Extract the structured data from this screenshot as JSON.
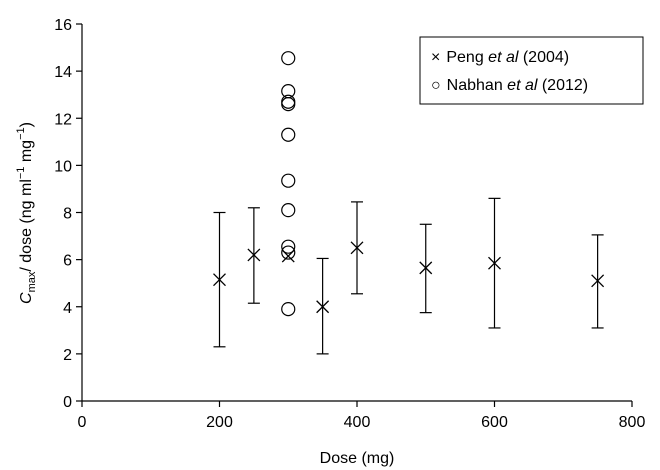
{
  "chart_data": {
    "type": "scatter",
    "xlabel": "Dose (mg)",
    "ylabel": {
      "main": "C",
      "main_subscript": "max",
      "rest": "/ dose (ng ml",
      "sup1": "−1",
      "mid": " mg",
      "sup2": "−1",
      "end": ")"
    },
    "xlim": [
      0,
      800
    ],
    "ylim": [
      0,
      16
    ],
    "xticks": [
      0,
      200,
      400,
      600,
      800
    ],
    "yticks": [
      0,
      2,
      4,
      6,
      8,
      10,
      12,
      14,
      16
    ],
    "grid": false,
    "legend_position": "top-right",
    "series": [
      {
        "legend": {
          "marker": "×",
          "author": "Peng",
          "etal": " et al",
          "year": " (2004)"
        },
        "marker": "x",
        "points": [
          {
            "x": 200,
            "y": 5.15,
            "ylow": 2.3,
            "yhigh": 8.0
          },
          {
            "x": 250,
            "y": 6.2,
            "ylow": 4.15,
            "yhigh": 8.2
          },
          {
            "x": 300,
            "y": 6.15,
            "ylow": null,
            "yhigh": null
          },
          {
            "x": 350,
            "y": 4.0,
            "ylow": 2.0,
            "yhigh": 6.05
          },
          {
            "x": 400,
            "y": 6.5,
            "ylow": 4.55,
            "yhigh": 8.45
          },
          {
            "x": 500,
            "y": 5.65,
            "ylow": 3.75,
            "yhigh": 7.5
          },
          {
            "x": 600,
            "y": 5.85,
            "ylow": 3.1,
            "yhigh": 8.6
          },
          {
            "x": 750,
            "y": 5.1,
            "ylow": 3.1,
            "yhigh": 7.05
          }
        ]
      },
      {
        "legend": {
          "marker": "○",
          "author": "Nabhan",
          "etal": " et al",
          "year": " (2012)"
        },
        "marker": "circle",
        "points": [
          {
            "x": 300,
            "y": 14.55
          },
          {
            "x": 300,
            "y": 13.15
          },
          {
            "x": 300,
            "y": 12.7
          },
          {
            "x": 300,
            "y": 12.6
          },
          {
            "x": 300,
            "y": 11.3
          },
          {
            "x": 300,
            "y": 9.35
          },
          {
            "x": 300,
            "y": 8.1
          },
          {
            "x": 300,
            "y": 6.55
          },
          {
            "x": 300,
            "y": 6.3
          },
          {
            "x": 300,
            "y": 3.9
          }
        ]
      }
    ]
  }
}
